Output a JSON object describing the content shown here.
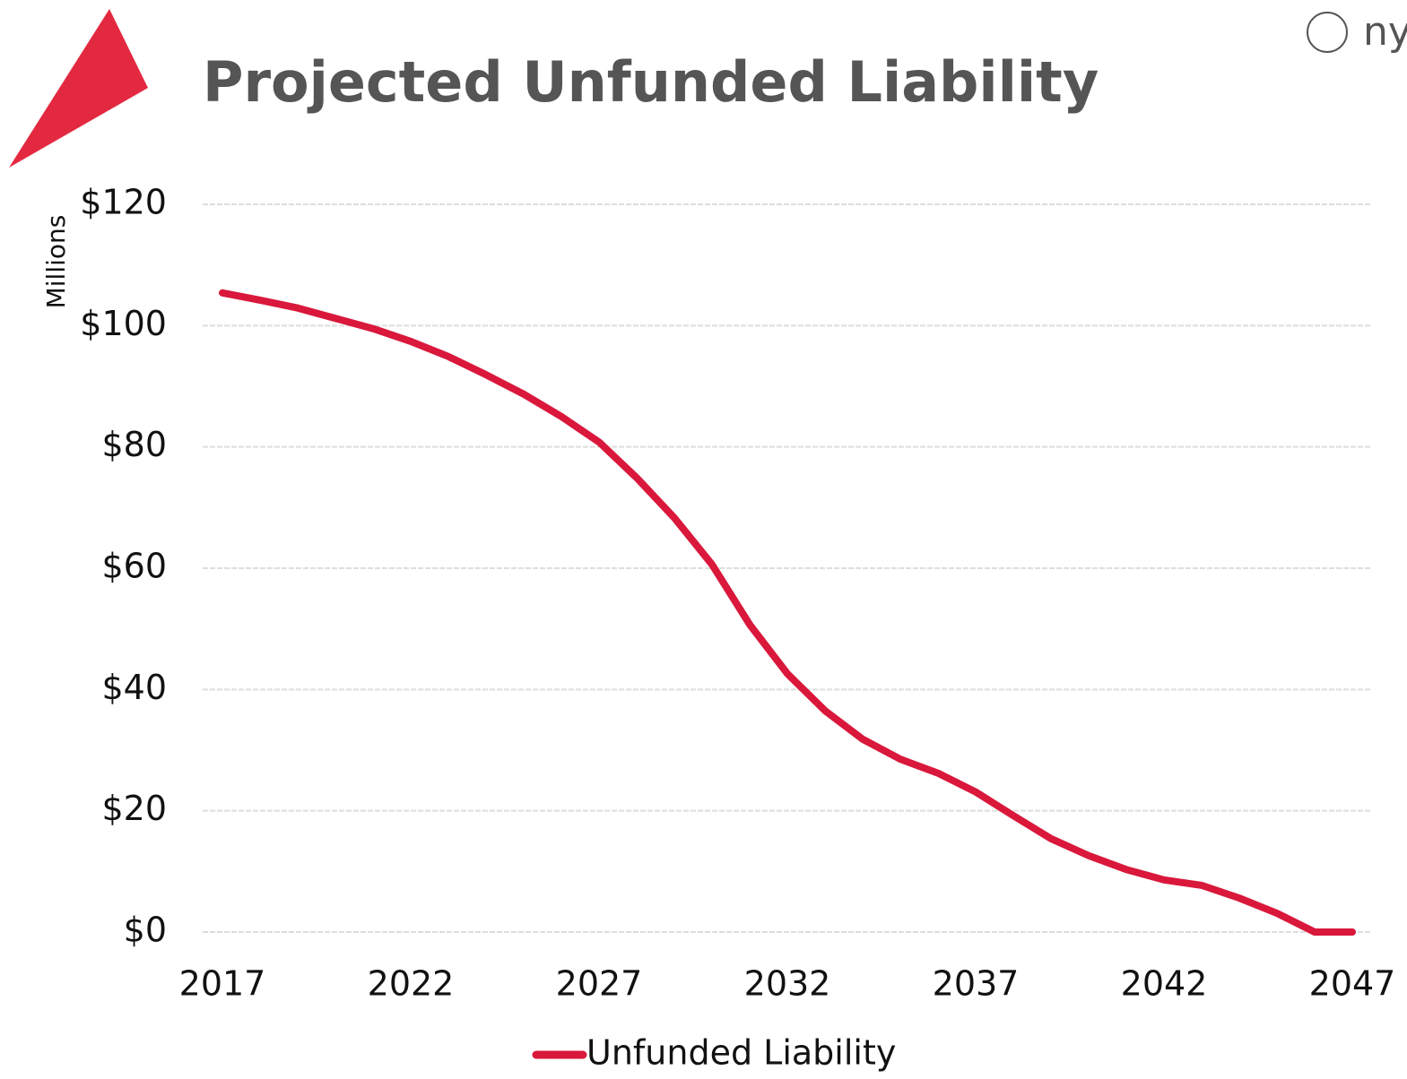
{
  "logo_text": "ny",
  "chart_data": {
    "type": "line",
    "title": "Projected Unfunded Liability",
    "y_label": "Millions",
    "x": [
      2017,
      2018,
      2019,
      2020,
      2021,
      2022,
      2023,
      2024,
      2025,
      2026,
      2027,
      2028,
      2029,
      2030,
      2031,
      2032,
      2033,
      2034,
      2035,
      2036,
      2037,
      2038,
      2039,
      2040,
      2041,
      2042,
      2043,
      2044,
      2045,
      2046,
      2047
    ],
    "series": [
      {
        "name": "Unfunded Liability",
        "color": "#d9183b",
        "values": [
          105.4,
          104.2,
          102.9,
          101.2,
          99.5,
          97.4,
          94.9,
          91.9,
          88.7,
          85,
          80.8,
          74.9,
          68.3,
          60.6,
          50.7,
          42.6,
          36.5,
          31.8,
          28.5,
          26.2,
          23.1,
          19.2,
          15.4,
          12.6,
          10.3,
          8.6,
          7.7,
          5.6,
          3.1,
          0,
          0
        ]
      }
    ],
    "xlim": [
      2017,
      2047
    ],
    "xticks": [
      2017,
      2022,
      2027,
      2032,
      2037,
      2042,
      2047
    ],
    "ylim": [
      0,
      120
    ],
    "yticks": [
      {
        "value": 0,
        "label": "$0"
      },
      {
        "value": 20,
        "label": "$20"
      },
      {
        "value": 40,
        "label": "$40"
      },
      {
        "value": 60,
        "label": "$60"
      },
      {
        "value": 80,
        "label": "$80"
      },
      {
        "value": 100,
        "label": "$100"
      },
      {
        "value": 120,
        "label": "$120"
      }
    ],
    "grid": true,
    "legend": "bottom"
  }
}
